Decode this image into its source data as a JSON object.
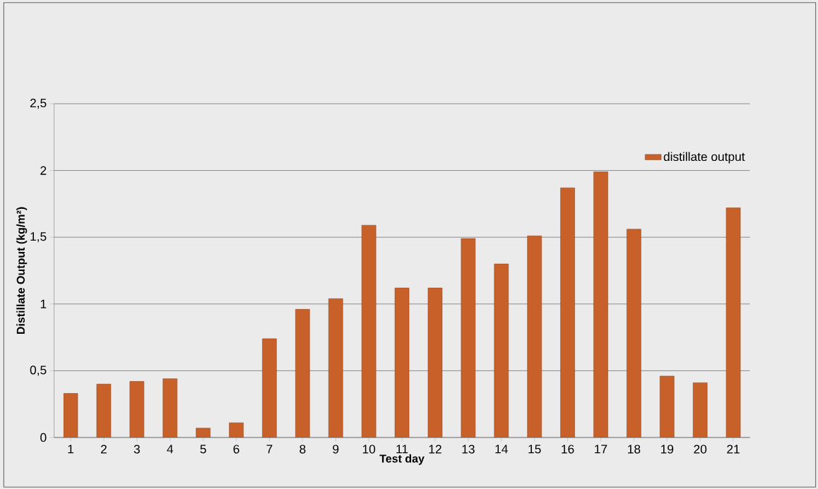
{
  "chart_data": {
    "type": "bar",
    "xlabel": "Test day",
    "ylabel": "Distillate Output (kg/m²)",
    "categories": [
      "1",
      "2",
      "3",
      "4",
      "5",
      "6",
      "7",
      "8",
      "9",
      "10",
      "11",
      "12",
      "13",
      "14",
      "15",
      "16",
      "17",
      "18",
      "19",
      "20",
      "21"
    ],
    "series": [
      {
        "name": "distillate output",
        "color": "#c8602a",
        "values": [
          0.33,
          0.4,
          0.42,
          0.44,
          0.07,
          0.11,
          0.74,
          0.96,
          1.04,
          1.59,
          1.12,
          1.12,
          1.49,
          1.3,
          1.51,
          1.87,
          1.99,
          1.56,
          0.46,
          0.41,
          1.72
        ]
      }
    ],
    "ylim": [
      0,
      2.5
    ],
    "yticks": [
      0,
      {
        "value": 0.5,
        "label": "0,5"
      },
      1,
      {
        "value": 1.5,
        "label": "1,5"
      },
      2,
      {
        "value": 2.5,
        "label": "2,5"
      }
    ],
    "grid": "y",
    "legend": "top right"
  }
}
